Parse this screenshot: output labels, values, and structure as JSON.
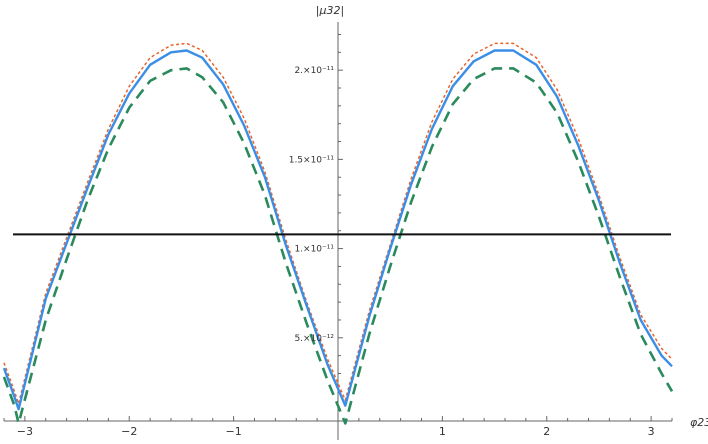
{
  "chart_data": {
    "type": "line",
    "xlabel": "φ23",
    "ylabel": "|μ32|",
    "xlim": [
      -3.2,
      3.2
    ],
    "ylim": [
      0,
      2.27e-11
    ],
    "x_ticks": [
      {
        "value": -3,
        "label": "−3"
      },
      {
        "value": -2,
        "label": "−2"
      },
      {
        "value": -1,
        "label": "−1"
      },
      {
        "value": 1,
        "label": "1"
      },
      {
        "value": 2,
        "label": "2"
      },
      {
        "value": 3,
        "label": "3"
      }
    ],
    "y_ticks": [
      {
        "value": 5e-12,
        "label": "5.×10⁻¹²"
      },
      {
        "value": 1e-11,
        "label": "1.×10⁻¹¹"
      },
      {
        "value": 1.5e-11,
        "label": "1.5×10⁻¹¹"
      },
      {
        "value": 2e-11,
        "label": "2.×10⁻¹¹"
      }
    ],
    "series": [
      {
        "style": "dotted",
        "color": "#E8642A",
        "x": [
          -3.2,
          -3.1,
          -3.06,
          -2.8,
          -2.6,
          -2.4,
          -2.2,
          -2.0,
          -1.8,
          -1.6,
          -1.45,
          -1.3,
          -1.1,
          -0.9,
          -0.7,
          -0.5,
          -0.3,
          -0.1,
          0.07,
          0.3,
          0.5,
          0.7,
          0.9,
          1.1,
          1.3,
          1.5,
          1.68,
          1.9,
          2.1,
          2.3,
          2.5,
          2.7,
          2.9,
          3.1,
          3.2
        ],
        "y": [
          3.6e-12,
          2e-12,
          1.3e-12,
          7.5e-12,
          1.06e-11,
          1.37e-11,
          1.67e-11,
          1.91e-11,
          2.07e-11,
          2.14e-11,
          2.15e-11,
          2.11e-11,
          1.96e-11,
          1.73e-11,
          1.43e-11,
          1.05e-11,
          7e-12,
          3.8e-12,
          1.5e-12,
          6.5e-12,
          1.02e-11,
          1.39e-11,
          1.71e-11,
          1.95e-11,
          2.09e-11,
          2.15e-11,
          2.15e-11,
          2.07e-11,
          1.89e-11,
          1.62e-11,
          1.3e-11,
          9.5e-12,
          6.3e-12,
          4.4e-12,
          3.8e-12
        ]
      },
      {
        "style": "solid",
        "color": "#3A8EE6",
        "x": [
          -3.2,
          -3.1,
          -3.06,
          -2.8,
          -2.6,
          -2.4,
          -2.2,
          -2.0,
          -1.8,
          -1.6,
          -1.45,
          -1.3,
          -1.1,
          -0.9,
          -0.7,
          -0.5,
          -0.3,
          -0.1,
          0.07,
          0.3,
          0.5,
          0.7,
          0.9,
          1.1,
          1.3,
          1.5,
          1.68,
          1.9,
          2.1,
          2.3,
          2.5,
          2.7,
          2.9,
          3.1,
          3.2
        ],
        "y": [
          3.3e-12,
          1.7e-12,
          1e-12,
          7.2e-12,
          1.03e-11,
          1.34e-11,
          1.64e-11,
          1.87e-11,
          2.03e-11,
          2.1e-11,
          2.11e-11,
          2.07e-11,
          1.92e-11,
          1.69e-11,
          1.4e-11,
          1.02e-11,
          6.8e-12,
          3.5e-12,
          1.2e-12,
          6.2e-12,
          1e-11,
          1.36e-11,
          1.67e-11,
          1.91e-11,
          2.05e-11,
          2.11e-11,
          2.11e-11,
          2.03e-11,
          1.85e-11,
          1.58e-11,
          1.27e-11,
          9.2e-12,
          6e-12,
          4e-12,
          3.4e-12
        ]
      },
      {
        "style": "dashed",
        "color": "#2A8A5C",
        "x": [
          -3.2,
          -3.1,
          -3.06,
          -2.8,
          -2.6,
          -2.4,
          -2.2,
          -2.0,
          -1.8,
          -1.6,
          -1.45,
          -1.3,
          -1.1,
          -0.9,
          -0.7,
          -0.5,
          -0.3,
          -0.1,
          0.07,
          0.3,
          0.5,
          0.7,
          0.9,
          1.1,
          1.3,
          1.5,
          1.68,
          1.9,
          2.1,
          2.3,
          2.5,
          2.7,
          2.9,
          3.1,
          3.2
        ],
        "y": [
          2.8e-12,
          1.2e-12,
          2e-13,
          6e-12,
          9.4e-12,
          1.27e-11,
          1.56e-11,
          1.79e-11,
          1.94e-11,
          2e-11,
          2.01e-11,
          1.96e-11,
          1.82e-11,
          1.59e-11,
          1.3e-11,
          9.2e-12,
          5.8e-12,
          2.6e-12,
          2e-13,
          5.2e-12,
          9e-12,
          1.26e-11,
          1.57e-11,
          1.81e-11,
          1.95e-11,
          2.01e-11,
          2.01e-11,
          1.93e-11,
          1.76e-11,
          1.49e-11,
          1.18e-11,
          8.4e-12,
          5.2e-12,
          3e-12,
          2e-12
        ]
      }
    ],
    "hline": {
      "y": 1.08e-11,
      "color": "#111111"
    },
    "grid": false
  }
}
